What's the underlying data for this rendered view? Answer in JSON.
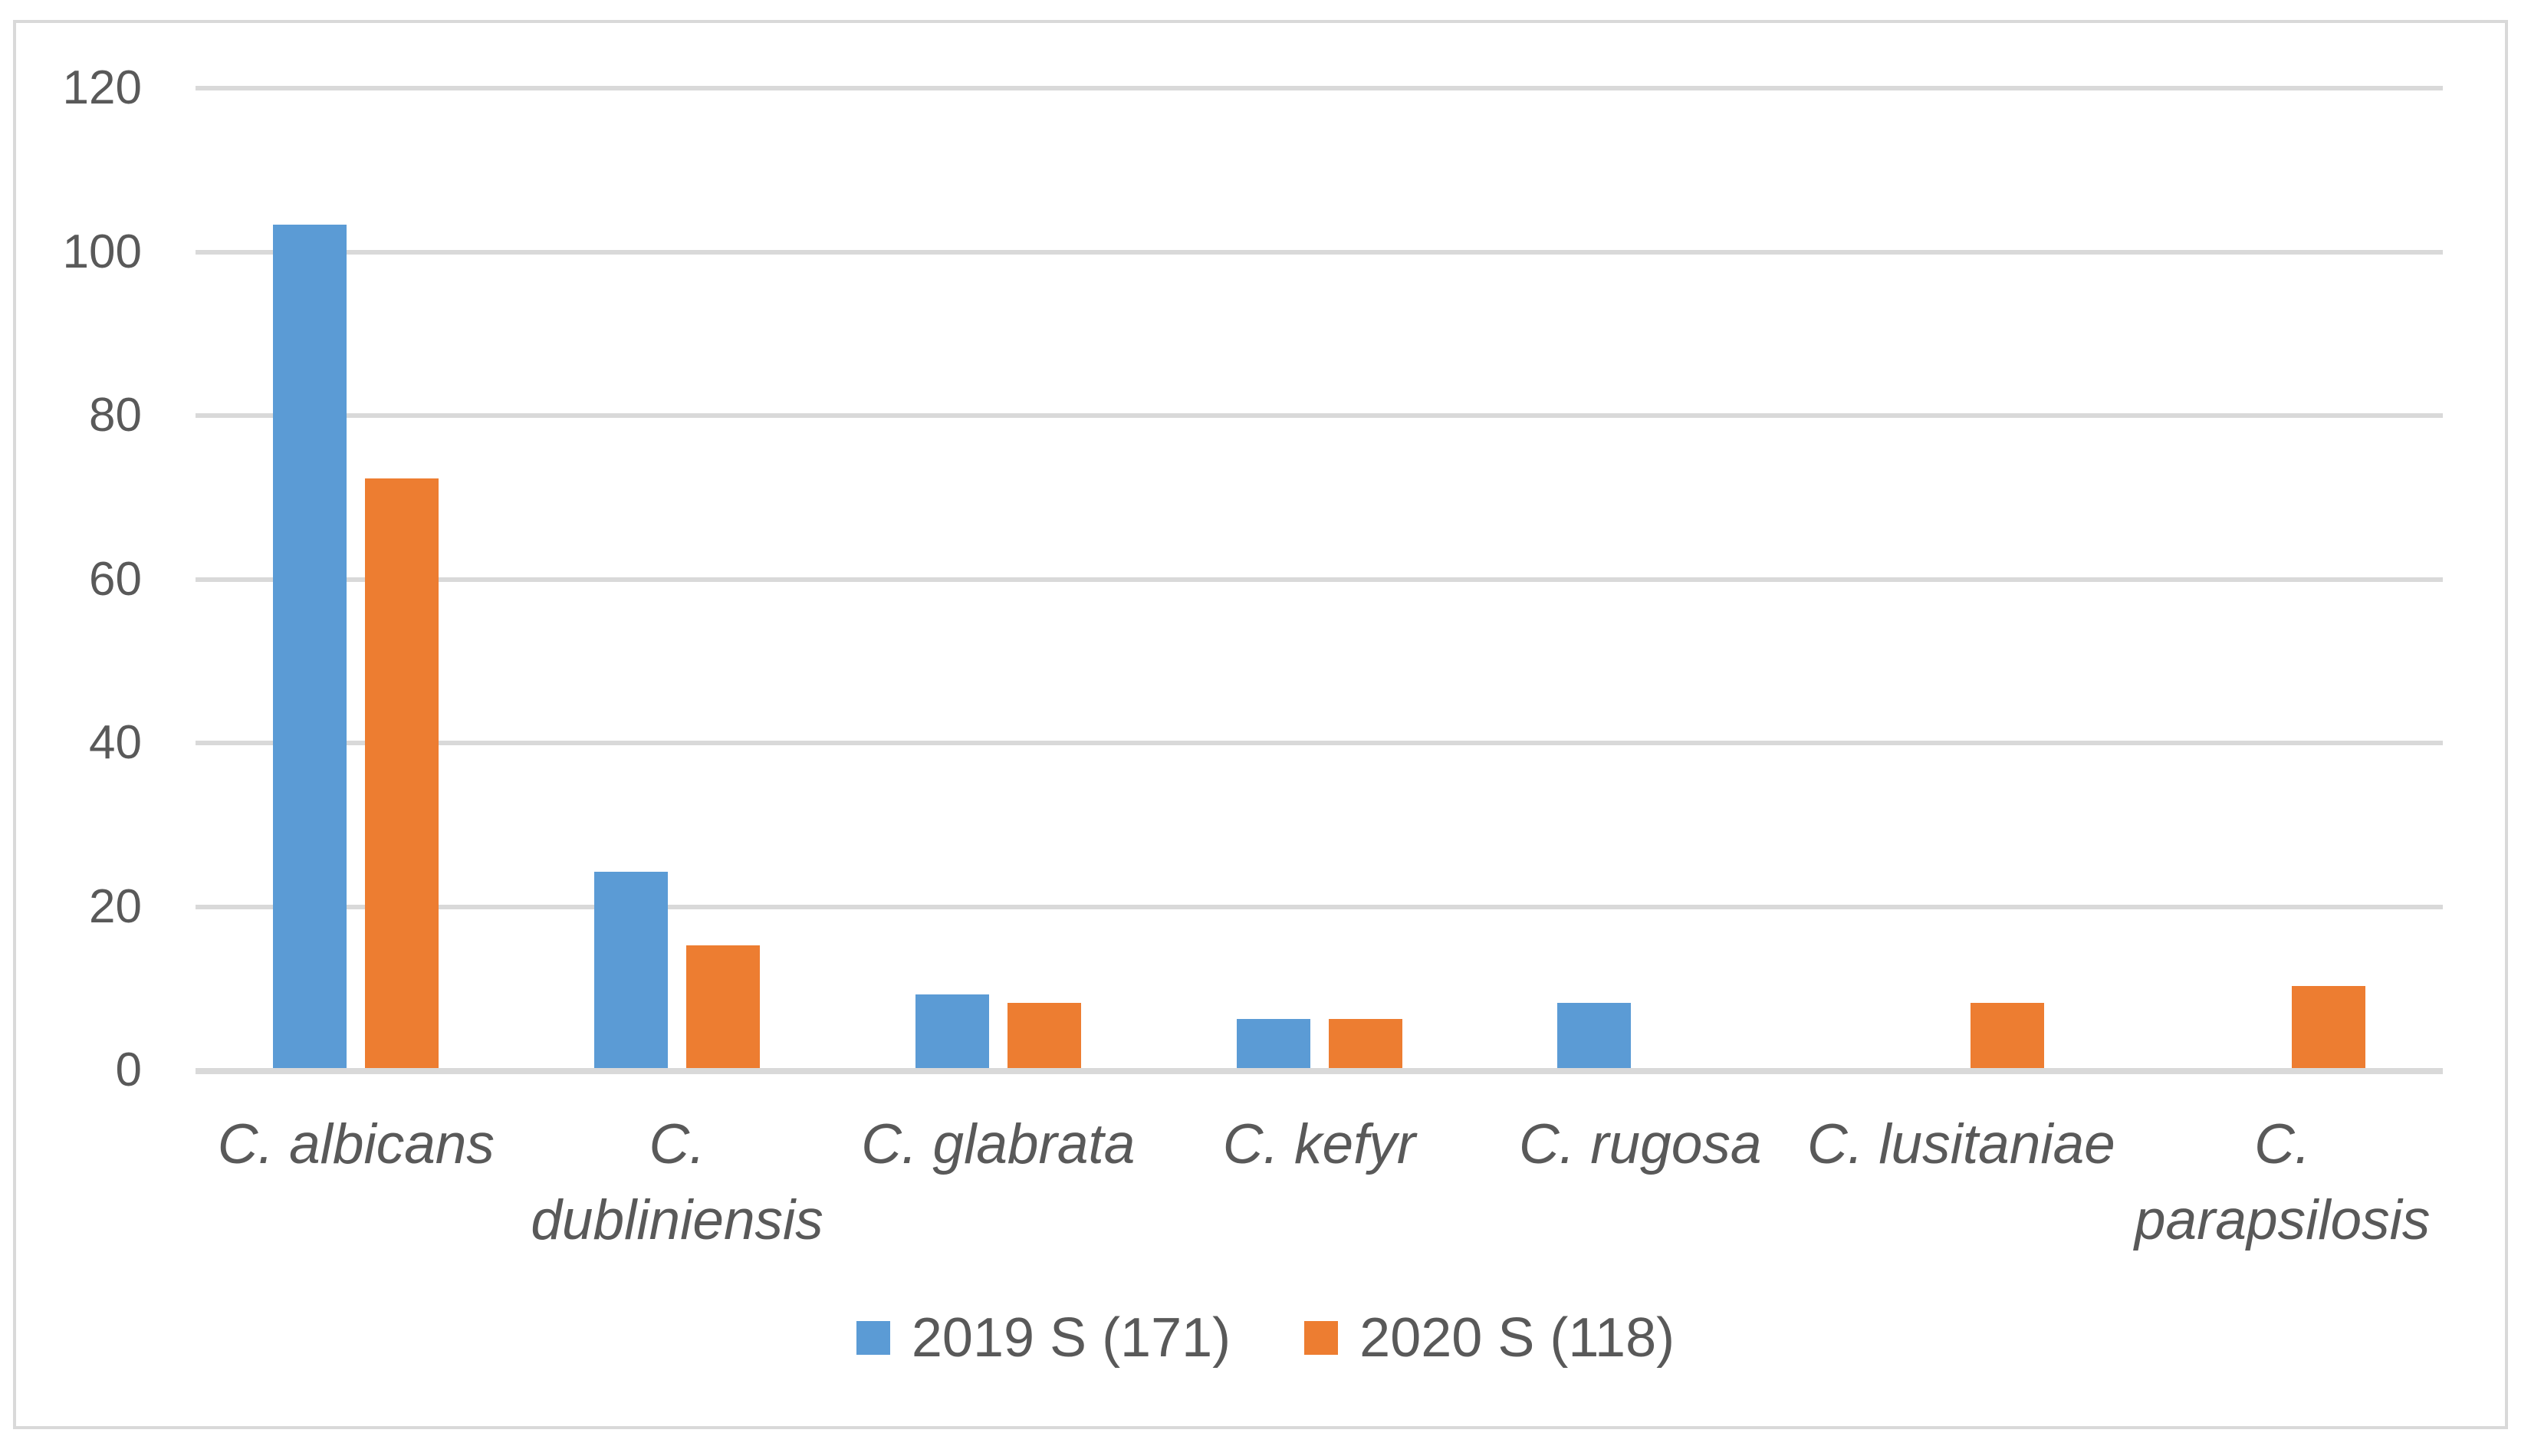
{
  "chart_data": {
    "type": "bar",
    "title": "",
    "xlabel": "",
    "ylabel": "",
    "ylim": [
      0,
      120
    ],
    "yticks": [
      0,
      20,
      40,
      60,
      80,
      100,
      120
    ],
    "grid": true,
    "legend_position": "bottom-center",
    "categories": [
      "C. albicans",
      "C. dubliniensis",
      "C. glabrata",
      "C. kefyr",
      "C. rugosa",
      "C. lusitaniae",
      "C. parapsilosis"
    ],
    "category_label_lines": [
      [
        "C. albicans"
      ],
      [
        "C.",
        "dubliniensis"
      ],
      [
        "C. glabrata"
      ],
      [
        "C. kefyr"
      ],
      [
        "C. rugosa"
      ],
      [
        "C. lusitaniae"
      ],
      [
        "C.",
        "parapsilosis"
      ]
    ],
    "series": [
      {
        "name": "2019 S (171)",
        "color": "#5B9BD5",
        "values": [
          103,
          24,
          9,
          6,
          8,
          0,
          0
        ]
      },
      {
        "name": "2020 S (118)",
        "color": "#ED7D31",
        "values": [
          72,
          15,
          8,
          6,
          0,
          8,
          10
        ]
      }
    ]
  },
  "colors": {
    "axis_text": "#595959",
    "gridline": "#D9D9D9",
    "frame_border": "#D9D9D9",
    "background": "#FFFFFF"
  }
}
